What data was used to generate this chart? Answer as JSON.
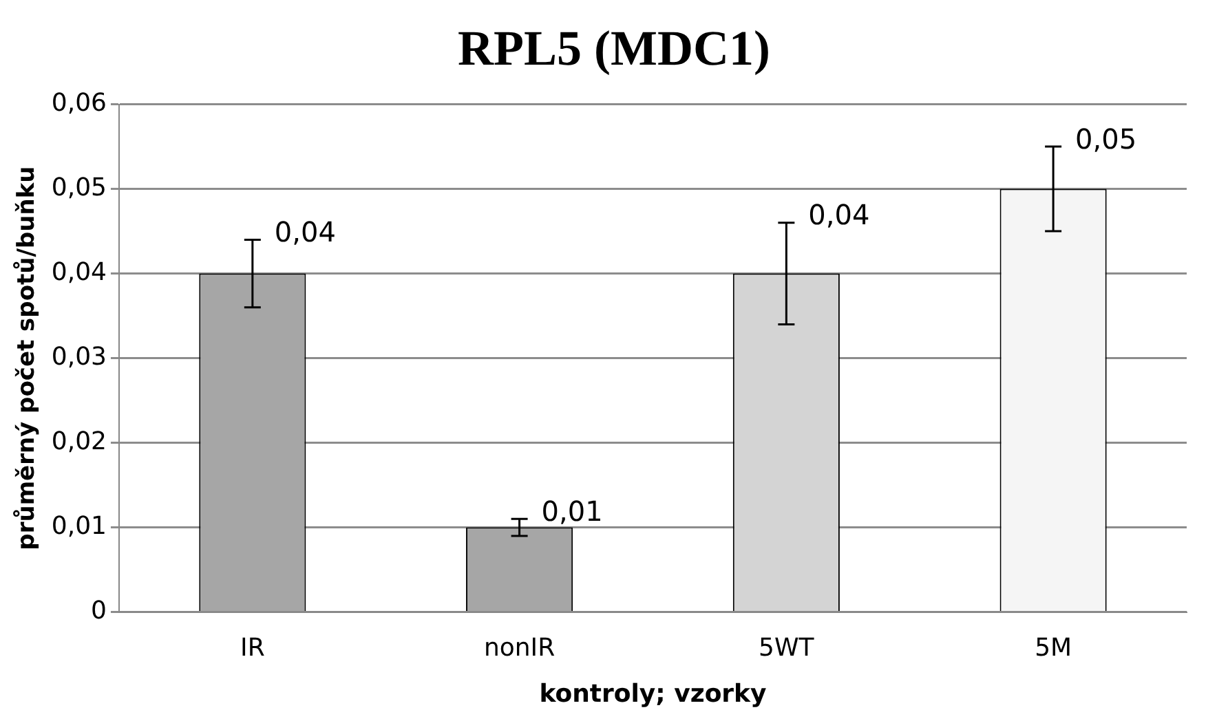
{
  "chart_data": {
    "type": "bar",
    "title": "RPL5 (MDC1)",
    "xlabel": "kontroly; vzorky",
    "ylabel": "průměrný počet spotů/buňku",
    "categories": [
      "IR",
      "nonIR",
      "5WT",
      "5M"
    ],
    "values": [
      0.04,
      0.01,
      0.04,
      0.05
    ],
    "colors": [
      "#a6a6a6",
      "#a6a6a6",
      "#d4d4d4",
      "#f5f5f5"
    ],
    "errors": [
      0.004,
      0.001,
      0.006,
      0.005
    ],
    "value_labels": [
      "0,04",
      "0,01",
      "0,04",
      "0,05"
    ],
    "ylim": [
      0,
      0.06
    ],
    "yticks": [
      {
        "value": 0,
        "label": "0"
      },
      {
        "value": 0.01,
        "label": "0,01"
      },
      {
        "value": 0.02,
        "label": "0,02"
      },
      {
        "value": 0.03,
        "label": "0,03"
      },
      {
        "value": 0.04,
        "label": "0,04"
      },
      {
        "value": 0.05,
        "label": "0,05"
      },
      {
        "value": 0.06,
        "label": "0,06"
      }
    ],
    "grid": "y"
  }
}
